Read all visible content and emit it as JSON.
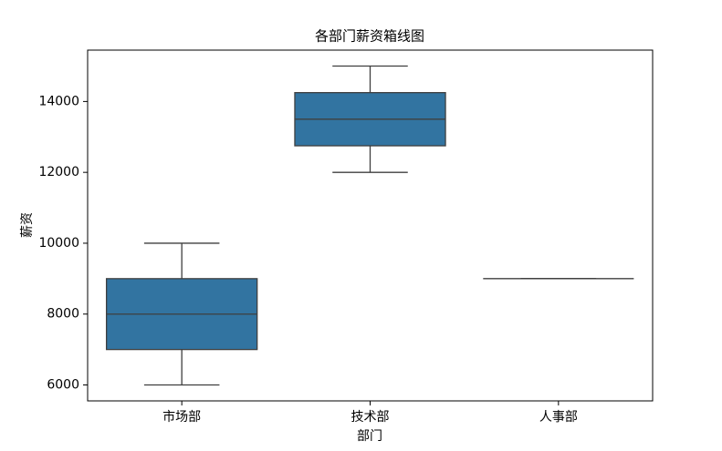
{
  "chart_data": {
    "type": "box",
    "title": "各部门薪资箱线图",
    "xlabel": "部门",
    "ylabel": "薪资",
    "categories": [
      "市场部",
      "技术部",
      "人事部"
    ],
    "boxes": [
      {
        "min": 6000,
        "q1": 7000,
        "median": 8000,
        "q3": 9000,
        "max": 10000
      },
      {
        "min": 12000,
        "q1": 12750,
        "median": 13500,
        "q3": 14250,
        "max": 15000
      },
      {
        "min": 9000,
        "q1": 9000,
        "median": 9000,
        "q3": 9000,
        "max": 9000
      }
    ],
    "color": "#3274a1",
    "ylim": [
      5550,
      15450
    ],
    "yticks": [
      6000,
      8000,
      10000,
      12000,
      14000
    ]
  }
}
